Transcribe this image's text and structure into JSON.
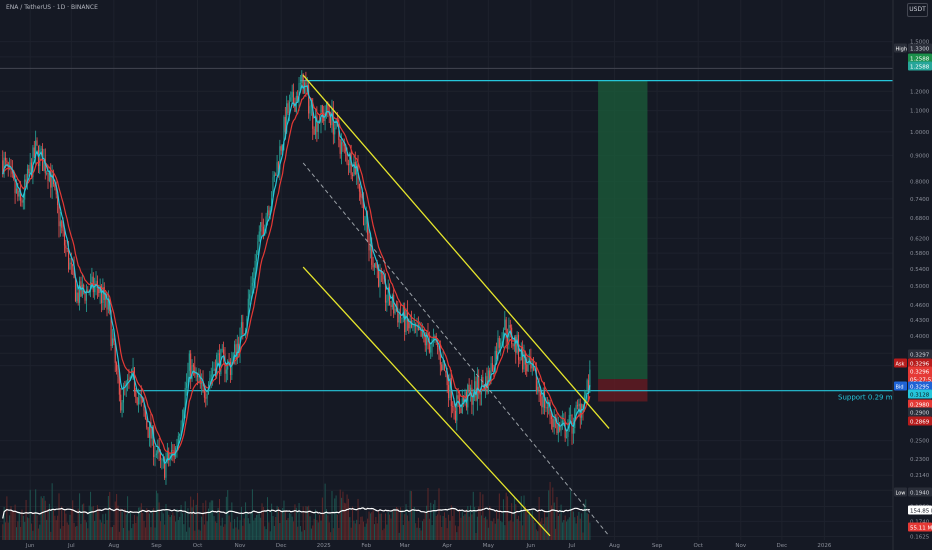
{
  "header": {
    "symbol_title": "ENA / TetherUS · 1D · BINANCE",
    "currency_button": "USDT"
  },
  "annotation": {
    "support_text": "Support 0.29 must hold"
  },
  "price_markers": {
    "high": {
      "label": "High",
      "value": "1.3300"
    },
    "target": {
      "value": "1.2588",
      "value2": "1.2588"
    },
    "ask": {
      "label": "Ask",
      "value": "0.3296"
    },
    "last": {
      "value": "0.3297"
    },
    "close": {
      "value": "0.3296",
      "countdown": "05:27:52"
    },
    "bid": {
      "label": "Bid",
      "value": "0.3295"
    },
    "support": {
      "value": "0.3128"
    },
    "stop": {
      "value": "0.2980"
    },
    "stop2": {
      "value": "0.2900"
    },
    "level3": {
      "value": "0.2869"
    },
    "low": {
      "label": "Low",
      "value": "0.1940"
    },
    "volume": {
      "value": "154.85 M"
    },
    "volume_ma": {
      "value": "55.11 M"
    }
  },
  "colors": {
    "background": "#151924",
    "bull": "#26a69a",
    "bear": "#ef5350",
    "ema_fast": "#26c6da",
    "ema_slow": "#e53935",
    "channel": "#e6e62c",
    "support_line": "#26c6da",
    "target_zone": "#1b5e3a",
    "stop_zone": "#6b1b22",
    "volume_ma": "#ffffff"
  },
  "chart_data": {
    "type": "candlestick",
    "x_tick_labels": [
      "Jun",
      "Jul",
      "Aug",
      "Sep",
      "Oct",
      "Nov",
      "Dec",
      "2025",
      "Feb",
      "Mar",
      "Apr",
      "May",
      "Jun",
      "Jul",
      "Aug",
      "Sep",
      "Oct",
      "Nov",
      "Dec",
      "2026"
    ],
    "y_tick_labels": [
      "1.5000",
      "1.4000",
      "1.2000",
      "1.1000",
      "1.0000",
      "0.9000",
      "0.8000",
      "0.7400",
      "0.6800",
      "0.6200",
      "0.5800",
      "0.5400",
      "0.5000",
      "0.4600",
      "0.4300",
      "0.4000",
      "0.3700",
      "0.3500",
      "0.2500",
      "0.2300",
      "0.2140",
      "0.2000",
      "0.1860",
      "0.1740",
      "0.1625"
    ],
    "y_tick_values": [
      1.5,
      1.4,
      1.2,
      1.1,
      1.0,
      0.9,
      0.8,
      0.74,
      0.68,
      0.62,
      0.58,
      0.54,
      0.5,
      0.46,
      0.43,
      0.4,
      0.37,
      0.35,
      0.25,
      0.23,
      0.214,
      0.2,
      0.186,
      0.174,
      0.1625
    ],
    "y_scale": "log",
    "ylim": [
      0.16,
      1.58
    ],
    "xlim": [
      "2024-05-10",
      "2026-02-20"
    ],
    "price_path": [
      {
        "date": "2024-05-12",
        "price": 0.88
      },
      {
        "date": "2024-05-25",
        "price": 0.72
      },
      {
        "date": "2024-06-05",
        "price": 0.92
      },
      {
        "date": "2024-06-15",
        "price": 0.84
      },
      {
        "date": "2024-06-25",
        "price": 0.62
      },
      {
        "date": "2024-07-05",
        "price": 0.48
      },
      {
        "date": "2024-07-20",
        "price": 0.5
      },
      {
        "date": "2024-07-28",
        "price": 0.45
      },
      {
        "date": "2024-08-05",
        "price": 0.3
      },
      {
        "date": "2024-08-15",
        "price": 0.33
      },
      {
        "date": "2024-08-25",
        "price": 0.27
      },
      {
        "date": "2024-09-05",
        "price": 0.22
      },
      {
        "date": "2024-09-15",
        "price": 0.24
      },
      {
        "date": "2024-09-25",
        "price": 0.35
      },
      {
        "date": "2024-10-05",
        "price": 0.31
      },
      {
        "date": "2024-10-15",
        "price": 0.36
      },
      {
        "date": "2024-10-25",
        "price": 0.35
      },
      {
        "date": "2024-11-05",
        "price": 0.43
      },
      {
        "date": "2024-11-15",
        "price": 0.62
      },
      {
        "date": "2024-11-25",
        "price": 0.78
      },
      {
        "date": "2024-12-05",
        "price": 1.08
      },
      {
        "date": "2024-12-17",
        "price": 1.25
      },
      {
        "date": "2024-12-25",
        "price": 1.05
      },
      {
        "date": "2025-01-05",
        "price": 1.1
      },
      {
        "date": "2025-01-15",
        "price": 0.92
      },
      {
        "date": "2025-01-25",
        "price": 0.85
      },
      {
        "date": "2025-02-03",
        "price": 0.6
      },
      {
        "date": "2025-02-15",
        "price": 0.48
      },
      {
        "date": "2025-02-25",
        "price": 0.44
      },
      {
        "date": "2025-03-10",
        "price": 0.4
      },
      {
        "date": "2025-03-25",
        "price": 0.38
      },
      {
        "date": "2025-04-07",
        "price": 0.29
      },
      {
        "date": "2025-04-20",
        "price": 0.31
      },
      {
        "date": "2025-05-01",
        "price": 0.33
      },
      {
        "date": "2025-05-12",
        "price": 0.42
      },
      {
        "date": "2025-05-22",
        "price": 0.38
      },
      {
        "date": "2025-06-03",
        "price": 0.33
      },
      {
        "date": "2025-06-13",
        "price": 0.29
      },
      {
        "date": "2025-06-22",
        "price": 0.26
      },
      {
        "date": "2025-07-01",
        "price": 0.27
      },
      {
        "date": "2025-07-09",
        "price": 0.3
      },
      {
        "date": "2025-07-15",
        "price": 0.33
      }
    ],
    "horizontal_levels": [
      {
        "price": 1.2588,
        "from": "2024-12-15",
        "to": "2026-02-20"
      },
      {
        "price": 0.3128,
        "from": "2024-08-15",
        "to": "2026-02-20"
      },
      {
        "price": 1.33,
        "from": "2024-05-10",
        "to": "2026-02-20"
      }
    ],
    "channel_lines": [
      {
        "from": {
          "date": "2024-12-17",
          "price": 1.29
        },
        "to": {
          "date": "2025-07-28",
          "price": 0.264
        }
      },
      {
        "from": {
          "date": "2024-12-17",
          "price": 0.545
        },
        "to": {
          "date": "2025-06-15",
          "price": 0.163
        }
      }
    ],
    "mid_dashed_line": {
      "from": {
        "date": "2024-12-17",
        "price": 0.87
      },
      "to": {
        "date": "2025-07-28",
        "price": 0.163
      }
    },
    "long_position": {
      "from": "2025-07-20",
      "to": "2025-08-25",
      "entry": 0.3296,
      "target": 1.2588,
      "stop": 0.298
    }
  }
}
